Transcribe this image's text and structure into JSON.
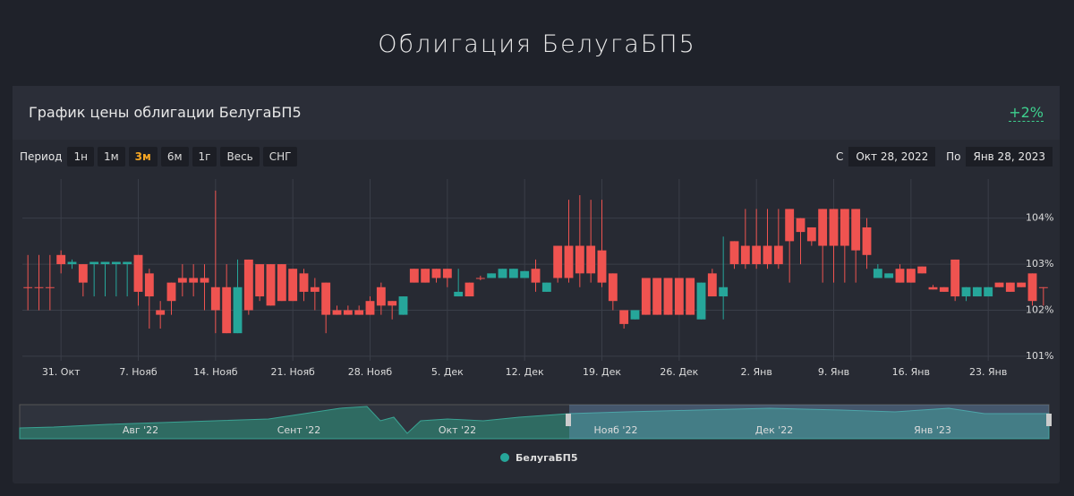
{
  "page_title": "Облигация БелугаБП5",
  "panel": {
    "title": "График цены облигации БелугаБП5",
    "change": "+2%"
  },
  "toolbar": {
    "period_label": "Период",
    "buttons": [
      "1н",
      "1м",
      "3м",
      "6м",
      "1г",
      "Весь",
      "СНГ"
    ],
    "active_button": "3м",
    "from_label": "С",
    "from_date": "Окт 28, 2022",
    "to_label": "По",
    "to_date": "Янв 28, 2023"
  },
  "navigator": {
    "labels": [
      "Авг '22",
      "Сент '22",
      "Окт '22",
      "Нояб '22",
      "Дек '22",
      "Янв '23"
    ]
  },
  "chart_data": {
    "type": "candlestick",
    "increasing_color": "#26a69a",
    "decreasing_color": "#ef5350",
    "grid": true,
    "ylim": [
      100.9,
      104.85
    ],
    "yticks": [
      {
        "value": 101,
        "label": "101%"
      },
      {
        "value": 102,
        "label": "102%"
      },
      {
        "value": 103,
        "label": "103%"
      },
      {
        "value": 104,
        "label": "104%"
      }
    ],
    "x": [
      null,
      null,
      null,
      "31. Окт",
      null,
      null,
      null,
      null,
      null,
      null,
      "7. Нояб",
      null,
      null,
      null,
      null,
      null,
      null,
      "14. Нояб",
      null,
      null,
      null,
      null,
      null,
      null,
      "21. Нояб",
      null,
      null,
      null,
      null,
      null,
      null,
      "28. Нояб",
      null,
      null,
      null,
      null,
      null,
      null,
      "5. Дек",
      null,
      null,
      null,
      null,
      null,
      null,
      "12. Дек",
      null,
      null,
      null,
      null,
      null,
      null,
      "19. Дек",
      null,
      null,
      null,
      null,
      null,
      null,
      "26. Дек",
      null,
      null,
      null,
      null,
      null,
      null,
      "2. Янв",
      null,
      null,
      null,
      null,
      null,
      null,
      "9. Янв",
      null,
      null,
      null,
      null,
      null,
      null,
      "16. Янв",
      null,
      null,
      null,
      null,
      null,
      null,
      "23. Янв",
      null,
      null,
      null,
      null,
      null
    ],
    "series": [
      {
        "name": "БелугаБП5",
        "ohlc": [
          [
            102.5,
            103.2,
            102.0,
            102.5
          ],
          [
            102.5,
            103.2,
            102.0,
            102.5
          ],
          [
            102.5,
            103.2,
            102.0,
            102.5
          ],
          [
            103.2,
            103.3,
            102.8,
            103.0
          ],
          [
            103.0,
            103.1,
            102.9,
            103.05
          ],
          [
            103.0,
            103.0,
            102.3,
            102.6
          ],
          [
            103.0,
            103.05,
            102.3,
            103.05
          ],
          [
            103.0,
            103.05,
            102.3,
            103.05
          ],
          [
            103.0,
            103.05,
            102.3,
            103.05
          ],
          [
            103.0,
            103.05,
            102.3,
            103.05
          ],
          [
            103.2,
            103.2,
            102.1,
            102.4
          ],
          [
            102.8,
            102.9,
            101.6,
            102.3
          ],
          [
            102.0,
            102.2,
            101.6,
            101.9
          ],
          [
            102.6,
            102.6,
            101.9,
            102.2
          ],
          [
            102.7,
            103.0,
            102.3,
            102.6
          ],
          [
            102.7,
            103.0,
            102.3,
            102.6
          ],
          [
            102.7,
            103.0,
            102.0,
            102.6
          ],
          [
            102.5,
            104.6,
            101.5,
            102.0
          ],
          [
            102.5,
            103.0,
            101.5,
            101.5
          ],
          [
            101.5,
            103.1,
            101.5,
            102.5
          ],
          [
            103.1,
            103.1,
            101.9,
            102.0
          ],
          [
            103.0,
            103.0,
            102.2,
            102.3
          ],
          [
            103.0,
            103.0,
            102.1,
            102.1
          ],
          [
            103.0,
            103.0,
            102.2,
            102.2
          ],
          [
            102.9,
            102.9,
            102.2,
            102.2
          ],
          [
            102.8,
            102.9,
            102.2,
            102.4
          ],
          [
            102.5,
            102.7,
            102.0,
            102.4
          ],
          [
            102.6,
            102.6,
            101.5,
            101.9
          ],
          [
            102.0,
            102.1,
            101.9,
            101.9
          ],
          [
            102.0,
            102.1,
            101.9,
            101.9
          ],
          [
            102.0,
            102.1,
            101.9,
            101.9
          ],
          [
            102.2,
            102.3,
            101.9,
            101.9
          ],
          [
            102.5,
            102.6,
            101.9,
            102.1
          ],
          [
            102.2,
            102.2,
            101.8,
            102.1
          ],
          [
            101.9,
            102.3,
            101.9,
            102.3
          ],
          [
            102.9,
            102.9,
            102.6,
            102.6
          ],
          [
            102.9,
            102.9,
            102.6,
            102.6
          ],
          [
            102.9,
            102.9,
            102.6,
            102.7
          ],
          [
            102.9,
            102.9,
            102.5,
            102.7
          ],
          [
            102.3,
            102.9,
            102.3,
            102.4
          ],
          [
            102.6,
            102.6,
            102.3,
            102.3
          ],
          [
            102.7,
            102.75,
            102.65,
            102.7
          ],
          [
            102.7,
            102.8,
            102.7,
            102.8
          ],
          [
            102.7,
            102.9,
            102.7,
            102.9
          ],
          [
            102.7,
            102.9,
            102.7,
            102.9
          ],
          [
            102.7,
            102.85,
            102.7,
            102.85
          ],
          [
            102.9,
            103.1,
            102.4,
            102.6
          ],
          [
            102.4,
            102.6,
            102.4,
            102.6
          ],
          [
            103.4,
            103.4,
            102.6,
            102.7
          ],
          [
            103.4,
            104.4,
            102.6,
            102.7
          ],
          [
            103.4,
            104.5,
            102.5,
            102.8
          ],
          [
            103.4,
            104.4,
            102.6,
            102.8
          ],
          [
            103.3,
            104.4,
            102.5,
            102.6
          ],
          [
            102.8,
            102.8,
            102.0,
            102.2
          ],
          [
            102.0,
            102.0,
            101.6,
            101.7
          ],
          [
            101.8,
            102.0,
            101.8,
            102.0
          ],
          [
            102.7,
            102.7,
            101.9,
            101.9
          ],
          [
            102.7,
            102.7,
            101.9,
            101.9
          ],
          [
            102.7,
            102.7,
            101.9,
            101.9
          ],
          [
            102.7,
            102.7,
            101.9,
            101.9
          ],
          [
            102.7,
            102.7,
            101.9,
            101.9
          ],
          [
            101.8,
            102.6,
            101.8,
            102.6
          ],
          [
            102.8,
            102.9,
            102.3,
            102.3
          ],
          [
            102.3,
            103.6,
            101.8,
            102.5
          ],
          [
            103.5,
            103.5,
            102.9,
            103.0
          ],
          [
            103.4,
            104.2,
            102.9,
            103.0
          ],
          [
            103.4,
            104.2,
            102.9,
            103.0
          ],
          [
            103.4,
            104.2,
            102.9,
            103.0
          ],
          [
            103.4,
            104.2,
            102.9,
            103.0
          ],
          [
            104.2,
            104.2,
            102.6,
            103.5
          ],
          [
            104.0,
            104.0,
            103.0,
            103.7
          ],
          [
            103.8,
            103.8,
            103.4,
            103.5
          ],
          [
            104.2,
            104.2,
            102.6,
            103.4
          ],
          [
            104.2,
            104.2,
            102.6,
            103.4
          ],
          [
            104.2,
            104.2,
            102.6,
            103.4
          ],
          [
            104.2,
            104.2,
            102.6,
            103.3
          ],
          [
            103.8,
            104.0,
            102.9,
            103.2
          ],
          [
            102.7,
            103.0,
            102.7,
            102.9
          ],
          [
            102.7,
            102.8,
            102.7,
            102.8
          ],
          [
            102.9,
            103.0,
            102.6,
            102.6
          ],
          [
            102.9,
            102.9,
            102.6,
            102.6
          ],
          [
            102.95,
            102.95,
            102.8,
            102.8
          ],
          [
            102.5,
            102.55,
            102.45,
            102.45
          ],
          [
            102.5,
            102.5,
            102.4,
            102.4
          ],
          [
            103.1,
            103.1,
            102.2,
            102.3
          ],
          [
            102.3,
            102.5,
            102.2,
            102.5
          ],
          [
            102.3,
            102.5,
            102.3,
            102.5
          ],
          [
            102.3,
            102.5,
            102.3,
            102.5
          ],
          [
            102.6,
            102.6,
            102.5,
            102.5
          ],
          [
            102.6,
            102.6,
            102.4,
            102.4
          ],
          [
            102.6,
            102.6,
            102.5,
            102.5
          ],
          [
            102.8,
            102.8,
            102.1,
            102.2
          ],
          [
            102.5,
            102.5,
            102.1,
            102.5
          ]
        ]
      }
    ]
  }
}
